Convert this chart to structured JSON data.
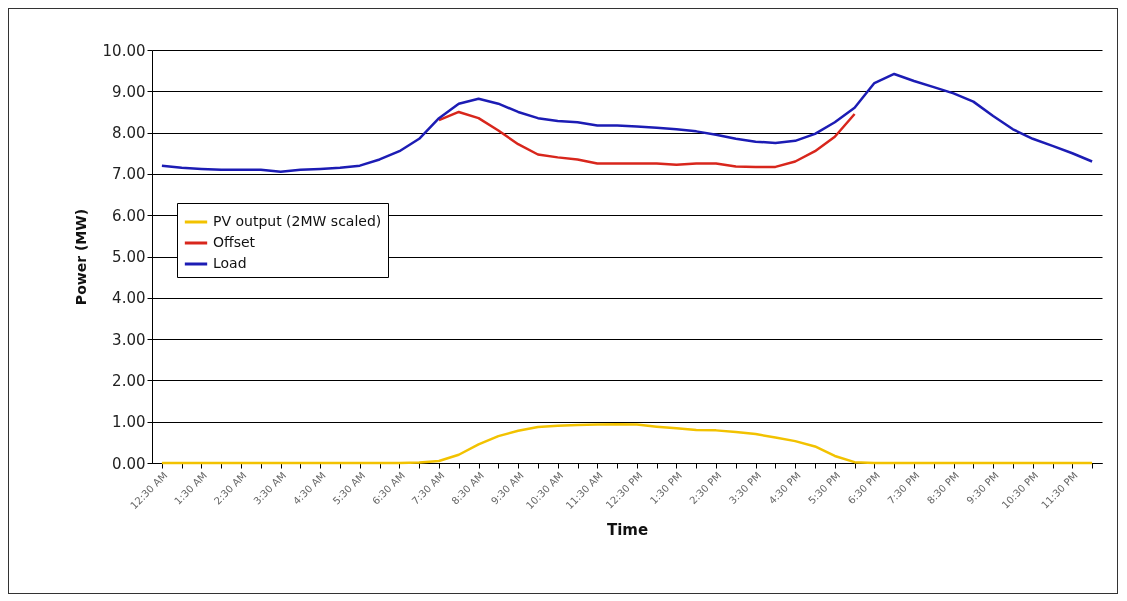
{
  "chart_data": {
    "type": "line",
    "xlabel": "Time",
    "ylabel": "Power (MW)",
    "categories": [
      "12:30 AM",
      null,
      "1:30 AM",
      null,
      "2:30 AM",
      null,
      "3:30 AM",
      null,
      "4:30 AM",
      null,
      "5:30 AM",
      null,
      "6:30 AM",
      null,
      "7:30 AM",
      null,
      "8:30 AM",
      null,
      "9:30 AM",
      null,
      "10:30 AM",
      null,
      "11:30 AM",
      null,
      "12:30 PM",
      null,
      "1:30 PM",
      null,
      "2:30 PM",
      null,
      "3:30 PM",
      null,
      "4:30 PM",
      null,
      "5:30 PM",
      null,
      "6:30 PM",
      null,
      "7:30 PM",
      null,
      "8:30 PM",
      null,
      "9:30 PM",
      null,
      "10:30 PM",
      null,
      "11:30 PM",
      null
    ],
    "series": [
      {
        "name": "PV output (2MW scaled)",
        "color": "#f2c200",
        "values": [
          0,
          0,
          0,
          0,
          0,
          0,
          0,
          0,
          0,
          0,
          0,
          0,
          0,
          0.01,
          0.05,
          0.2,
          0.45,
          0.65,
          0.78,
          0.87,
          0.9,
          0.92,
          0.93,
          0.94,
          0.93,
          0.88,
          0.84,
          0.8,
          0.79,
          0.75,
          0.7,
          0.62,
          0.53,
          0.4,
          0.17,
          0.02,
          0,
          0,
          0,
          0,
          0,
          0,
          0,
          0,
          0,
          0,
          0,
          0
        ]
      },
      {
        "name": "Offset",
        "color": "#d8261c",
        "values": [
          null,
          null,
          null,
          null,
          null,
          null,
          null,
          null,
          null,
          null,
          null,
          null,
          null,
          null,
          8.3,
          8.5,
          8.35,
          8.05,
          7.72,
          7.47,
          7.4,
          7.35,
          7.25,
          7.25,
          7.25,
          7.25,
          7.22,
          7.25,
          7.25,
          7.18,
          7.17,
          7.17,
          7.3,
          7.55,
          7.9,
          8.45,
          null,
          null,
          null,
          null,
          null,
          null,
          null,
          null,
          null,
          null,
          null,
          null
        ]
      },
      {
        "name": "Load",
        "color": "#1c1cb4",
        "values": [
          7.2,
          7.15,
          7.12,
          7.1,
          7.1,
          7.1,
          7.05,
          7.1,
          7.12,
          7.15,
          7.2,
          7.35,
          7.55,
          7.85,
          8.35,
          8.7,
          8.82,
          8.7,
          8.5,
          8.35,
          8.28,
          8.25,
          8.17,
          8.17,
          8.15,
          8.12,
          8.08,
          8.03,
          7.95,
          7.85,
          7.78,
          7.75,
          7.8,
          7.97,
          8.25,
          8.6,
          9.2,
          9.42,
          9.25,
          9.1,
          8.95,
          8.75,
          8.4,
          8.08,
          7.85,
          7.68,
          7.5,
          7.3
        ]
      }
    ],
    "ylim": [
      0,
      10
    ],
    "yticks": [
      {
        "value": 0,
        "label": "0.00"
      },
      {
        "value": 1,
        "label": "1.00"
      },
      {
        "value": 2,
        "label": "2.00"
      },
      {
        "value": 3,
        "label": "3.00"
      },
      {
        "value": 4,
        "label": "4.00"
      },
      {
        "value": 5,
        "label": "5.00"
      },
      {
        "value": 6,
        "label": "6.00"
      },
      {
        "value": 7,
        "label": "7.00"
      },
      {
        "value": 8,
        "label": "8.00"
      },
      {
        "value": 9,
        "label": "9.00"
      },
      {
        "value": 10,
        "label": "10.00"
      }
    ],
    "grid": "y",
    "legend": "top left",
    "marker": "none",
    "line_style": "solid"
  }
}
